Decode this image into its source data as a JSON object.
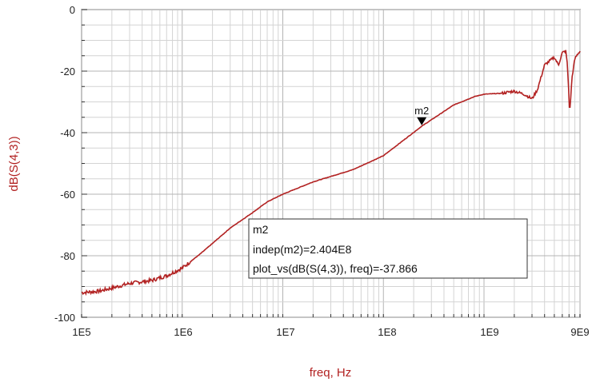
{
  "chart_data": {
    "type": "line",
    "xlabel": "freq, Hz",
    "ylabel": "dB(S(4,3))",
    "x_scale": "log",
    "xlim": [
      100000,
      9000000000
    ],
    "ylim": [
      -100,
      0
    ],
    "x_tick_labels": [
      "1E5",
      "1E6",
      "1E7",
      "1E8",
      "1E9",
      "9E9"
    ],
    "x_tick_values": [
      100000,
      1000000,
      10000000,
      100000000,
      1000000000,
      9000000000
    ],
    "y_tick_labels": [
      "0",
      "-20",
      "-40",
      "-60",
      "-80",
      "-100"
    ],
    "y_tick_values": [
      0,
      -20,
      -40,
      -60,
      -80,
      -100
    ],
    "grid": true,
    "series": [
      {
        "name": "dB(S(4,3))",
        "color": "#b22222",
        "x": [
          100000,
          150000,
          200000,
          300000,
          500000,
          700000,
          1000000,
          1500000,
          2000000,
          3000000,
          5000000,
          7000000,
          10000000,
          20000000,
          50000000,
          100000000,
          240400000,
          500000000,
          800000000,
          1000000000,
          1500000000,
          2000000000,
          2500000000,
          3000000000,
          3400000000,
          4000000000,
          5000000000,
          5500000000,
          6000000000,
          6500000000,
          6700000000,
          6900000000,
          7100000000,
          7500000000,
          8000000000,
          8500000000,
          9000000000
        ],
        "values": [
          -92,
          -91.5,
          -90.5,
          -89,
          -88,
          -86.5,
          -84,
          -79.5,
          -76,
          -71,
          -66,
          -62.5,
          -60,
          -56,
          -52,
          -47.5,
          -37.9,
          -31,
          -28.3,
          -27.5,
          -27.2,
          -26.5,
          -27.5,
          -29,
          -26,
          -18,
          -15.5,
          -18,
          -14,
          -13.5,
          -17,
          -24,
          -34,
          -22,
          -16,
          -14.5,
          -13.5
        ]
      }
    ],
    "markers": [
      {
        "name": "m2",
        "x": 240400000,
        "y": -37.866
      }
    ],
    "annotation_box": {
      "title": "m2",
      "line1": "indep(m2)=2.404E8",
      "line2": "plot_vs(dB(S(4,3)), freq)=-37.866"
    }
  }
}
